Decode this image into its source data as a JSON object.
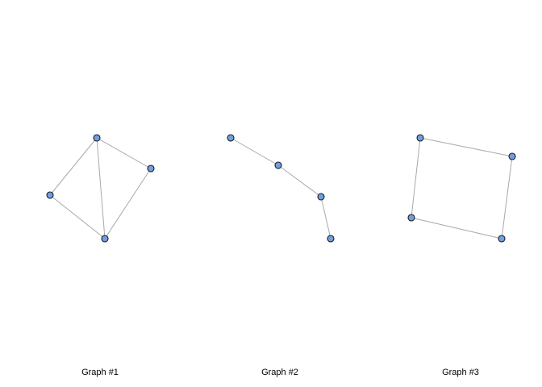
{
  "colors": {
    "background": "#ffffff",
    "edge": "#a9a9a9",
    "node_fill": "#6f9fe0",
    "node_stroke": "#1a1a1a",
    "caption": "#000000"
  },
  "graphs": [
    {
      "label": "Graph #1",
      "nodes": [
        "a",
        "b",
        "c",
        "d"
      ],
      "edges": [
        [
          "a",
          "b"
        ],
        [
          "a",
          "c"
        ],
        [
          "a",
          "d"
        ],
        [
          "b",
          "c"
        ],
        [
          "c",
          "d"
        ]
      ]
    },
    {
      "label": "Graph #2",
      "nodes": [
        "a",
        "b",
        "c",
        "d"
      ],
      "edges": [
        [
          "a",
          "b"
        ],
        [
          "b",
          "c"
        ],
        [
          "c",
          "d"
        ]
      ]
    },
    {
      "label": "Graph #3",
      "nodes": [
        "a",
        "b",
        "c",
        "d"
      ],
      "edges": [
        [
          "a",
          "b"
        ],
        [
          "b",
          "d"
        ],
        [
          "d",
          "c"
        ],
        [
          "c",
          "a"
        ]
      ]
    }
  ]
}
